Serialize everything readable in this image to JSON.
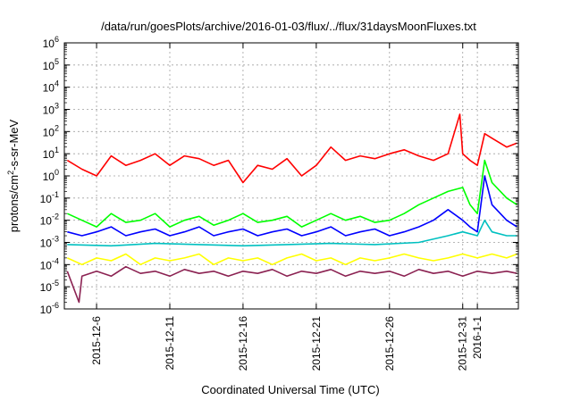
{
  "chart_data": {
    "type": "line",
    "title": "/data/run/goesPlots/archive/2016-01-03/flux/../flux/31daysMoonFluxes.txt",
    "xlabel": "Coordinated Universal Time (UTC)",
    "ylabel_parts": [
      "protons/cm",
      "2",
      "-s-sr-MeV"
    ],
    "yscale": "log",
    "ylim_exponents": [
      -6,
      6
    ],
    "y_tick_exponents": [
      -6,
      -5,
      -4,
      -3,
      -2,
      -1,
      0,
      1,
      2,
      3,
      4,
      5,
      6
    ],
    "y_tick_base": "10",
    "x_tick_labels": [
      "2015-12-6",
      "2015-12-11",
      "2015-12-16",
      "2015-12-21",
      "2015-12-26",
      "2015-12-31",
      "2016-1-1"
    ],
    "x_tick_days": [
      6,
      11,
      16,
      21,
      26,
      31,
      32
    ],
    "xlim_days": [
      3.8,
      34.8
    ],
    "grid": true,
    "series": [
      {
        "color": "#ff0000",
        "x": [
          4,
          5,
          6,
          7,
          8,
          9,
          10,
          11,
          12,
          13,
          14,
          15,
          16,
          17,
          18,
          19,
          20,
          21,
          22,
          23,
          24,
          25,
          26,
          27,
          28,
          29,
          30,
          30.8,
          31,
          31.5,
          32,
          32.5,
          33,
          34,
          34.7
        ],
        "y": [
          5,
          2,
          1,
          8,
          3,
          5,
          10,
          3,
          8,
          6,
          3,
          5,
          0.5,
          3,
          2,
          6,
          1,
          3,
          20,
          5,
          8,
          6,
          10,
          15,
          8,
          5,
          10,
          600,
          10,
          5,
          3,
          80,
          50,
          20,
          30
        ]
      },
      {
        "color": "#00ff00",
        "x": [
          4,
          5,
          6,
          7,
          8,
          9,
          10,
          11,
          12,
          13,
          14,
          15,
          16,
          17,
          18,
          19,
          20,
          21,
          22,
          23,
          24,
          25,
          26,
          27,
          28,
          29,
          30,
          31,
          31.5,
          32,
          32.5,
          33,
          34,
          34.7
        ],
        "y": [
          0.02,
          0.01,
          0.005,
          0.02,
          0.008,
          0.01,
          0.02,
          0.005,
          0.01,
          0.015,
          0.006,
          0.01,
          0.02,
          0.008,
          0.01,
          0.015,
          0.005,
          0.01,
          0.02,
          0.01,
          0.015,
          0.008,
          0.01,
          0.02,
          0.05,
          0.1,
          0.2,
          0.3,
          0.05,
          0.02,
          5,
          0.5,
          0.1,
          0.05
        ]
      },
      {
        "color": "#0000ff",
        "x": [
          4,
          5,
          6,
          7,
          8,
          9,
          10,
          11,
          12,
          13,
          14,
          15,
          16,
          17,
          18,
          19,
          20,
          21,
          22,
          23,
          24,
          25,
          26,
          27,
          28,
          29,
          30,
          31,
          31.5,
          32,
          32.5,
          33,
          34,
          34.7
        ],
        "y": [
          0.003,
          0.002,
          0.003,
          0.005,
          0.002,
          0.003,
          0.004,
          0.002,
          0.003,
          0.005,
          0.002,
          0.003,
          0.004,
          0.002,
          0.003,
          0.004,
          0.002,
          0.003,
          0.005,
          0.002,
          0.003,
          0.004,
          0.002,
          0.003,
          0.005,
          0.01,
          0.03,
          0.01,
          0.005,
          0.003,
          1,
          0.05,
          0.01,
          0.005
        ]
      },
      {
        "color": "#00c0c0",
        "x": [
          4,
          7,
          10,
          13,
          16,
          19,
          22,
          25,
          28,
          30,
          31,
          32,
          32.5,
          33,
          34,
          34.7
        ],
        "y": [
          0.0008,
          0.0007,
          0.0009,
          0.0008,
          0.0007,
          0.0008,
          0.0009,
          0.0008,
          0.001,
          0.002,
          0.003,
          0.002,
          0.01,
          0.003,
          0.002,
          0.002
        ]
      },
      {
        "color": "#ffff00",
        "x": [
          4,
          5,
          6,
          7,
          8,
          9,
          10,
          11,
          12,
          13,
          14,
          15,
          16,
          17,
          18,
          19,
          20,
          21,
          22,
          23,
          24,
          25,
          26,
          27,
          28,
          29,
          30,
          31,
          32,
          33,
          34,
          34.7
        ],
        "y": [
          0.0002,
          0.0001,
          0.0002,
          0.00015,
          0.0003,
          0.0001,
          0.0002,
          0.00015,
          0.0002,
          0.0003,
          0.0001,
          0.0002,
          0.00015,
          0.0002,
          0.0001,
          0.0002,
          0.0003,
          0.00015,
          0.0002,
          0.0001,
          0.0002,
          0.00015,
          0.0002,
          0.0003,
          0.0002,
          0.00015,
          0.0002,
          0.0003,
          0.0002,
          0.0003,
          0.0002,
          0.0003
        ]
      },
      {
        "color": "#8b2252",
        "x": [
          4,
          4.8,
          5,
          6,
          7,
          8,
          9,
          10,
          11,
          12,
          13,
          14,
          15,
          16,
          17,
          18,
          19,
          20,
          21,
          22,
          23,
          24,
          25,
          26,
          27,
          28,
          29,
          30,
          31,
          32,
          33,
          34,
          34.7
        ],
        "y": [
          5e-05,
          2e-06,
          3e-05,
          5e-05,
          3e-05,
          8e-05,
          4e-05,
          5e-05,
          3e-05,
          6e-05,
          4e-05,
          5e-05,
          3e-05,
          5e-05,
          4e-05,
          6e-05,
          3e-05,
          5e-05,
          4e-05,
          6e-05,
          3e-05,
          5e-05,
          4e-05,
          5e-05,
          3e-05,
          6e-05,
          4e-05,
          5e-05,
          3e-05,
          5e-05,
          4e-05,
          5e-05,
          4e-05
        ]
      }
    ]
  }
}
